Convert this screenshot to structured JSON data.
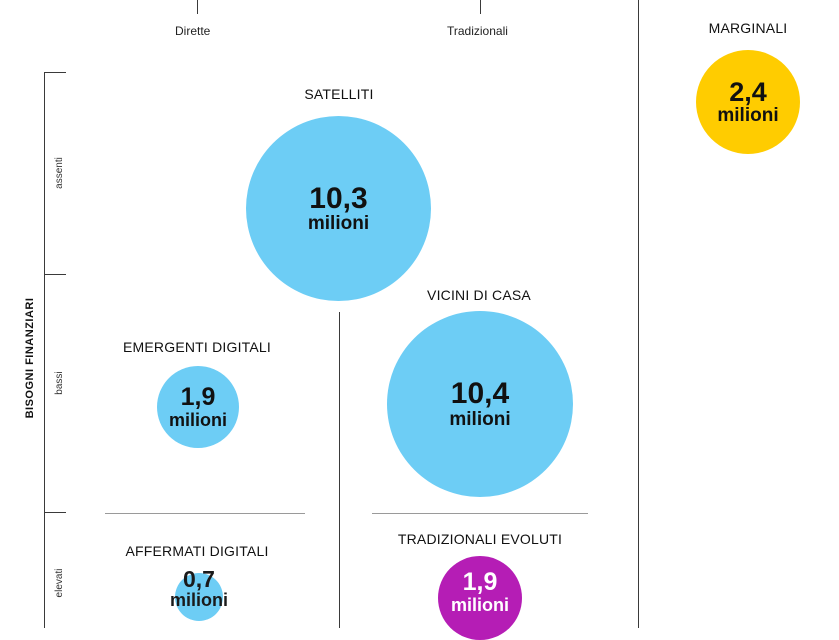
{
  "columns": {
    "direct": "Dirette",
    "traditional": "Tradizionali"
  },
  "y_axis": {
    "title": "BISOGNI FINANZIARI",
    "ticks": [
      "assenti",
      "bassi",
      "elevati"
    ]
  },
  "segments": {
    "marginali": {
      "name": "MARGINALI",
      "value": "2,4",
      "unit": "milioni",
      "color": "#FFCC00"
    },
    "satelliti": {
      "name": "SATELLITI",
      "value": "10,3",
      "unit": "milioni",
      "color": "#6DCDF5"
    },
    "vicini": {
      "name": "VICINI DI CASA",
      "value": "10,4",
      "unit": "milioni",
      "color": "#6DCDF5"
    },
    "emergenti": {
      "name": "EMERGENTI DIGITALI",
      "value": "1,9",
      "unit": "milioni",
      "color": "#6DCDF5"
    },
    "affermati": {
      "name": "AFFERMATI DIGITALI",
      "value": "0,7",
      "unit": "milioni",
      "color": "#6DCDF5"
    },
    "evoluti": {
      "name": "TRADIZIONALI EVOLUTI",
      "value": "1,9",
      "unit": "milioni",
      "color": "#B51DB5"
    }
  }
}
